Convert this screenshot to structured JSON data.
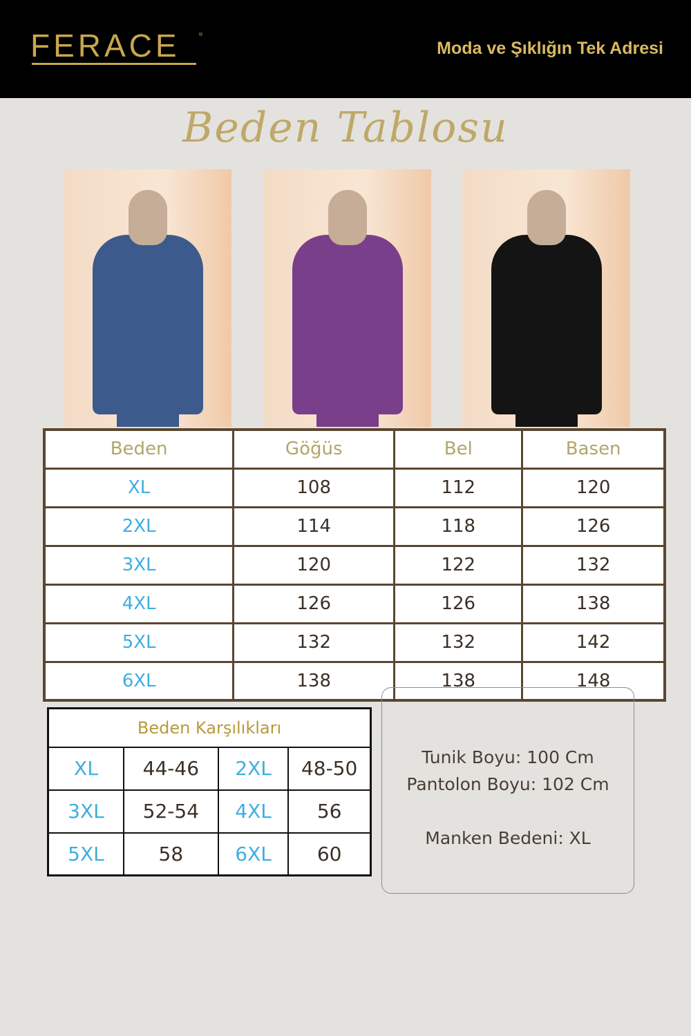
{
  "header": {
    "brand": "FERACE",
    "slogan": "Moda ve Şıklığın Tek Adresi",
    "background": "#000000",
    "gold": "#c9a74c"
  },
  "title": "Beden Tablosu",
  "photos": [
    {
      "color": "#3d5a8c",
      "label": "blue"
    },
    {
      "color": "#7a3f8a",
      "label": "purple"
    },
    {
      "color": "#141414",
      "label": "black"
    }
  ],
  "size_table": {
    "headers": [
      "Beden",
      "Göğüs",
      "Bel",
      "Basen"
    ],
    "rows": [
      [
        "XL",
        "108",
        "112",
        "120"
      ],
      [
        "2XL",
        "114",
        "118",
        "126"
      ],
      [
        "3XL",
        "120",
        "122",
        "132"
      ],
      [
        "4XL",
        "126",
        "126",
        "138"
      ],
      [
        "5XL",
        "132",
        "132",
        "142"
      ],
      [
        "6XL",
        "138",
        "138",
        "148"
      ]
    ]
  },
  "equiv_table": {
    "title": "Beden Karşılıkları",
    "rows": [
      [
        "XL",
        "44-46",
        "2XL",
        "48-50"
      ],
      [
        "3XL",
        "52-54",
        "4XL",
        "56"
      ],
      [
        "5XL",
        "58",
        "6XL",
        "60"
      ]
    ]
  },
  "info": {
    "tunic": "Tunik Boyu:    100 Cm",
    "pants": "Pantolon Boyu: 102 Cm",
    "model": "Manken Bedeni: XL"
  }
}
